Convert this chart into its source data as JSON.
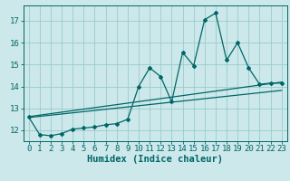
{
  "bg_color": "#cce8eb",
  "line_color": "#006666",
  "grid_color": "#99cccc",
  "xlabel": "Humidex (Indice chaleur)",
  "xlabel_fontsize": 7.5,
  "tick_fontsize": 6.5,
  "yticks": [
    12,
    13,
    14,
    15,
    16,
    17
  ],
  "xticks": [
    0,
    1,
    2,
    3,
    4,
    5,
    6,
    7,
    8,
    9,
    10,
    11,
    12,
    13,
    14,
    15,
    16,
    17,
    18,
    19,
    20,
    21,
    22,
    23
  ],
  "ylim": [
    11.5,
    17.7
  ],
  "xlim": [
    -0.5,
    23.5
  ],
  "jagged_x": [
    0,
    1,
    2,
    3,
    4,
    5,
    6,
    7,
    8,
    9,
    10,
    11,
    12,
    13,
    14,
    15,
    16,
    17,
    18,
    19,
    20,
    21,
    22,
    23
  ],
  "jagged_y": [
    12.6,
    11.8,
    11.75,
    11.85,
    12.05,
    12.1,
    12.15,
    12.25,
    12.3,
    12.5,
    14.0,
    14.85,
    14.45,
    13.3,
    15.55,
    14.95,
    17.05,
    17.35,
    15.2,
    16.0,
    14.85,
    14.1,
    14.15,
    14.15
  ],
  "trend1_x": [
    0,
    23
  ],
  "trend1_y": [
    12.62,
    14.2
  ],
  "trend2_x": [
    0,
    23
  ],
  "trend2_y": [
    12.58,
    13.82
  ]
}
